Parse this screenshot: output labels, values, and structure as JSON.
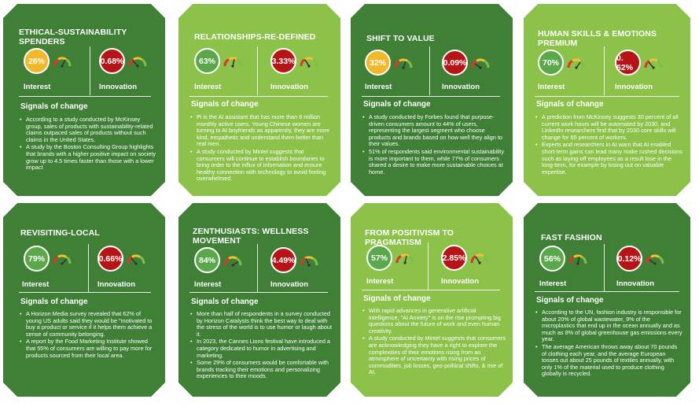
{
  "cards": [
    {
      "title": "ETHICAL-SUSTAINABILITY SPENDERS",
      "interest_value": "26%",
      "interest_label": "Interest",
      "innovation_value": "0.68%",
      "innovation_label": "Innovation",
      "signals_heading": "Signals of change",
      "bullets": [
        "According to a study conducted by McKinsey group, sales of products with sustainability-related claims outpaced sales of products without such claims in the United States.",
        "A study by the Boston Consulting Group highlights that brands with a higher positive impact on society grow up to 4.5 times faster than those with a lower impact"
      ]
    },
    {
      "title": "RELATIONSHIPS-RE-DEFINED",
      "interest_value": "63%",
      "interest_label": "Interest",
      "innovation_value": "3.33%",
      "innovation_label": "Innovation",
      "signals_heading": "Signals of change",
      "bullets": [
        "Pi is the AI assistant that has more than 6 million monthly active users. Young Chinese women are turning to AI boyfriends as apparently, they are more kind, empathetic and understand them better than real men.",
        "A study conducted by Mintel suggests that consumers will continue to establish boundaries to bring order to the influx of information and ensure healthy connection with technology to avoid feeling overwhelmed."
      ]
    },
    {
      "title": "SHIFT TO VALUE",
      "interest_value": "32%",
      "interest_label": "Interest",
      "innovation_value": "0.09%",
      "innovation_label": "Innovation",
      "signals_heading": "Signals of change",
      "bullets": [
        "A study conducted by Forbes found that purpose-driven consumers amount to 44% of users, representing the largest segment who choose products and brands based on how well they align to their values.",
        "51% of respondents said environmental sustainability is more important to them, while 77% of consumers shared a desire to make more sustainable choices at home."
      ]
    },
    {
      "title": "HUMAN SKILLS & EMOTIONS PREMIUM",
      "interest_value": "70%",
      "interest_label": "Interest",
      "innovation_value": "0. 62%",
      "innovation_label": "Innovation",
      "signals_heading": "Signals of change",
      "bullets": [
        "A prediction from McKinsey suggests 30 percent of all current work hours will be automated by 2030, and LinkedIn researchers find that by 2030 core skills will change for 65 percent of workers.",
        "Experts and researchers in AI warn that AI enabled short-term gains can lead many make rushed decisions such as laying-off employees as a result lose in the long-term, for example by losing out on valuable expertise."
      ]
    },
    {
      "title": "REVISITING-LOCAL",
      "interest_value": "79%",
      "interest_label": "Interest",
      "innovation_value": "0.66%",
      "innovation_label": "Innovation",
      "signals_heading": "Signals of change",
      "bullets": [
        "A Horizon Media survey revealed that 62% of young US adults said they would be \"motivated to buy a product or service if it helps them achieve a sense of community belonging.",
        "A report by the Food Marketing Institute showed that 55% of consumers are willing to pay more for products sourced from their local area."
      ]
    },
    {
      "title": "ZENTHUSIASTS: WELLNESS MOVEMENT",
      "interest_value": "84%",
      "interest_label": "Interest",
      "innovation_value": "4.49%",
      "innovation_label": "Innovation",
      "signals_heading": "Signals of change",
      "bullets": [
        "More than half of respondents in a survey conducted by Horizon Catalysts think the best way to deal with the stress of the world is to use humor or laugh about it.",
        "In 2023, the Cannes Lions festival have introduced a category dedicated to humor in advertising and marketing.",
        "Some 29% of consumers would be comfortable with brands tracking their emotions and personalizing experiences to their moods."
      ]
    },
    {
      "title": "FROM POSITIVISM TO PRAGMATISM",
      "interest_value": "57%",
      "interest_label": "Interest",
      "innovation_value": "2.85%",
      "innovation_label": "Innovation",
      "signals_heading": "Signals of change",
      "bullets": [
        "With rapid advances in generative artificial intelligence, \"AI Anxiety\" is on the rise prompting big questions about the future of work and even human creativity.",
        "A study conducted by Mintel suggests that consumers are acknowledging they have a right to explore the complexities of their emotions rising from an atmosphere of uncertainty with rising prices of commodities, job losses, geo-political shifts, & rise of AI."
      ]
    },
    {
      "title": "FAST FASHION",
      "interest_value": "56%",
      "interest_label": "Interest",
      "innovation_value": "0.12%",
      "innovation_label": "Innovation",
      "signals_heading": "Signals of change",
      "bullets": [
        "According to the UN, fashion industry is responsible for about 20% of global wastewater, 9% of the microplastics that end up in the ocean annually and as much as 8% of global greenhouse gas emissions every year.",
        "The average American throws away about 70 pounds of clothing each year, and the average European tosses out about 25 pounds of textiles annually, with only 1% of the material used to produce clothing globally is recycled."
      ]
    }
  ],
  "colors": {
    "dark_green": "#3f7f36",
    "light_green": "#8cc14a",
    "interest_yellow": "#f2b82b",
    "interest_green": "#5aa84a",
    "innovation_red": "#b71418"
  },
  "icons": {
    "gauge": "speedometer-gauge-icon"
  }
}
